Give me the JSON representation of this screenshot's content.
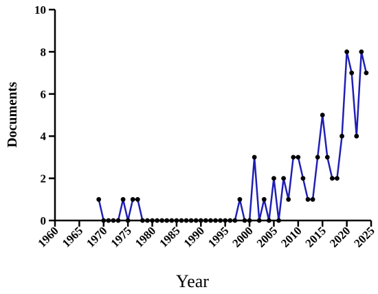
{
  "chart_data": {
    "type": "line",
    "title": "",
    "xlabel": "Year",
    "ylabel": "Documents",
    "xlim": [
      1960,
      2025
    ],
    "ylim": [
      0,
      10
    ],
    "x_ticks": [
      "1960",
      "1965",
      "1970",
      "1975",
      "1980",
      "1985",
      "1990",
      "1995",
      "2000",
      "2005",
      "2010",
      "2015",
      "2020",
      "2025"
    ],
    "y_ticks": [
      "0",
      "2",
      "4",
      "6",
      "8",
      "10"
    ],
    "grid": false,
    "legend": "none",
    "line_color": "#1f1fb4",
    "marker_color": "#000000",
    "series": [
      {
        "x": [
          1969,
          1970,
          1971,
          1972,
          1973,
          1974,
          1975,
          1976,
          1977,
          1978,
          1979,
          1980,
          1981,
          1982,
          1983,
          1984,
          1985,
          1986,
          1987,
          1988,
          1989,
          1990,
          1991,
          1992,
          1993,
          1994,
          1995,
          1996,
          1997,
          1998,
          1999,
          2000,
          2001,
          2002,
          2003,
          2004,
          2005,
          2006,
          2007,
          2008,
          2009,
          2010,
          2011,
          2012,
          2013,
          2014,
          2015,
          2016,
          2017,
          2018,
          2019,
          2020,
          2021,
          2022,
          2023,
          2024
        ],
        "values": [
          1,
          0,
          0,
          0,
          0,
          1,
          0,
          1,
          1,
          0,
          0,
          0,
          0,
          0,
          0,
          0,
          0,
          0,
          0,
          0,
          0,
          0,
          0,
          0,
          0,
          0,
          0,
          0,
          0,
          1,
          0,
          0,
          3,
          0,
          1,
          0,
          2,
          0,
          2,
          1,
          3,
          3,
          2,
          1,
          1,
          3,
          5,
          3,
          2,
          2,
          4,
          8,
          7,
          4,
          8,
          7
        ]
      }
    ]
  }
}
